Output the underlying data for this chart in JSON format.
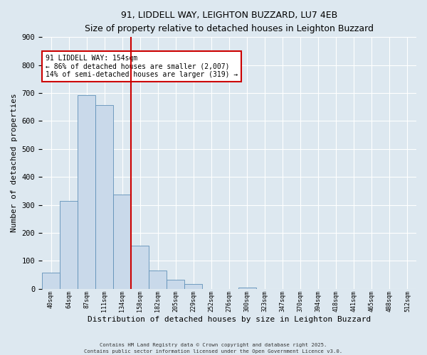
{
  "title": "91, LIDDELL WAY, LEIGHTON BUZZARD, LU7 4EB",
  "subtitle": "Size of property relative to detached houses in Leighton Buzzard",
  "xlabel": "Distribution of detached houses by size in Leighton Buzzard",
  "ylabel": "Number of detached properties",
  "bin_labels": [
    "40sqm",
    "64sqm",
    "87sqm",
    "111sqm",
    "134sqm",
    "158sqm",
    "182sqm",
    "205sqm",
    "229sqm",
    "252sqm",
    "276sqm",
    "300sqm",
    "323sqm",
    "347sqm",
    "370sqm",
    "394sqm",
    "418sqm",
    "441sqm",
    "465sqm",
    "488sqm",
    "512sqm"
  ],
  "bar_heights": [
    57,
    313,
    693,
    657,
    336,
    153,
    65,
    32,
    16,
    0,
    0,
    5,
    0,
    0,
    0,
    0,
    0,
    0,
    0,
    0,
    0
  ],
  "bar_color": "#c9d9ea",
  "bar_edge_color": "#6090b8",
  "vline_index": 5,
  "vline_color": "#cc0000",
  "annotation_title": "91 LIDDELL WAY: 154sqm",
  "annotation_line1": "← 86% of detached houses are smaller (2,007)",
  "annotation_line2": "14% of semi-detached houses are larger (319) →",
  "annotation_box_color": "#cc0000",
  "ylim": [
    0,
    900
  ],
  "yticks": [
    0,
    100,
    200,
    300,
    400,
    500,
    600,
    700,
    800,
    900
  ],
  "footer1": "Contains HM Land Registry data © Crown copyright and database right 2025.",
  "footer2": "Contains public sector information licensed under the Open Government Licence v3.0.",
  "bg_color": "#dde8f0",
  "grid_color": "#ffffff"
}
